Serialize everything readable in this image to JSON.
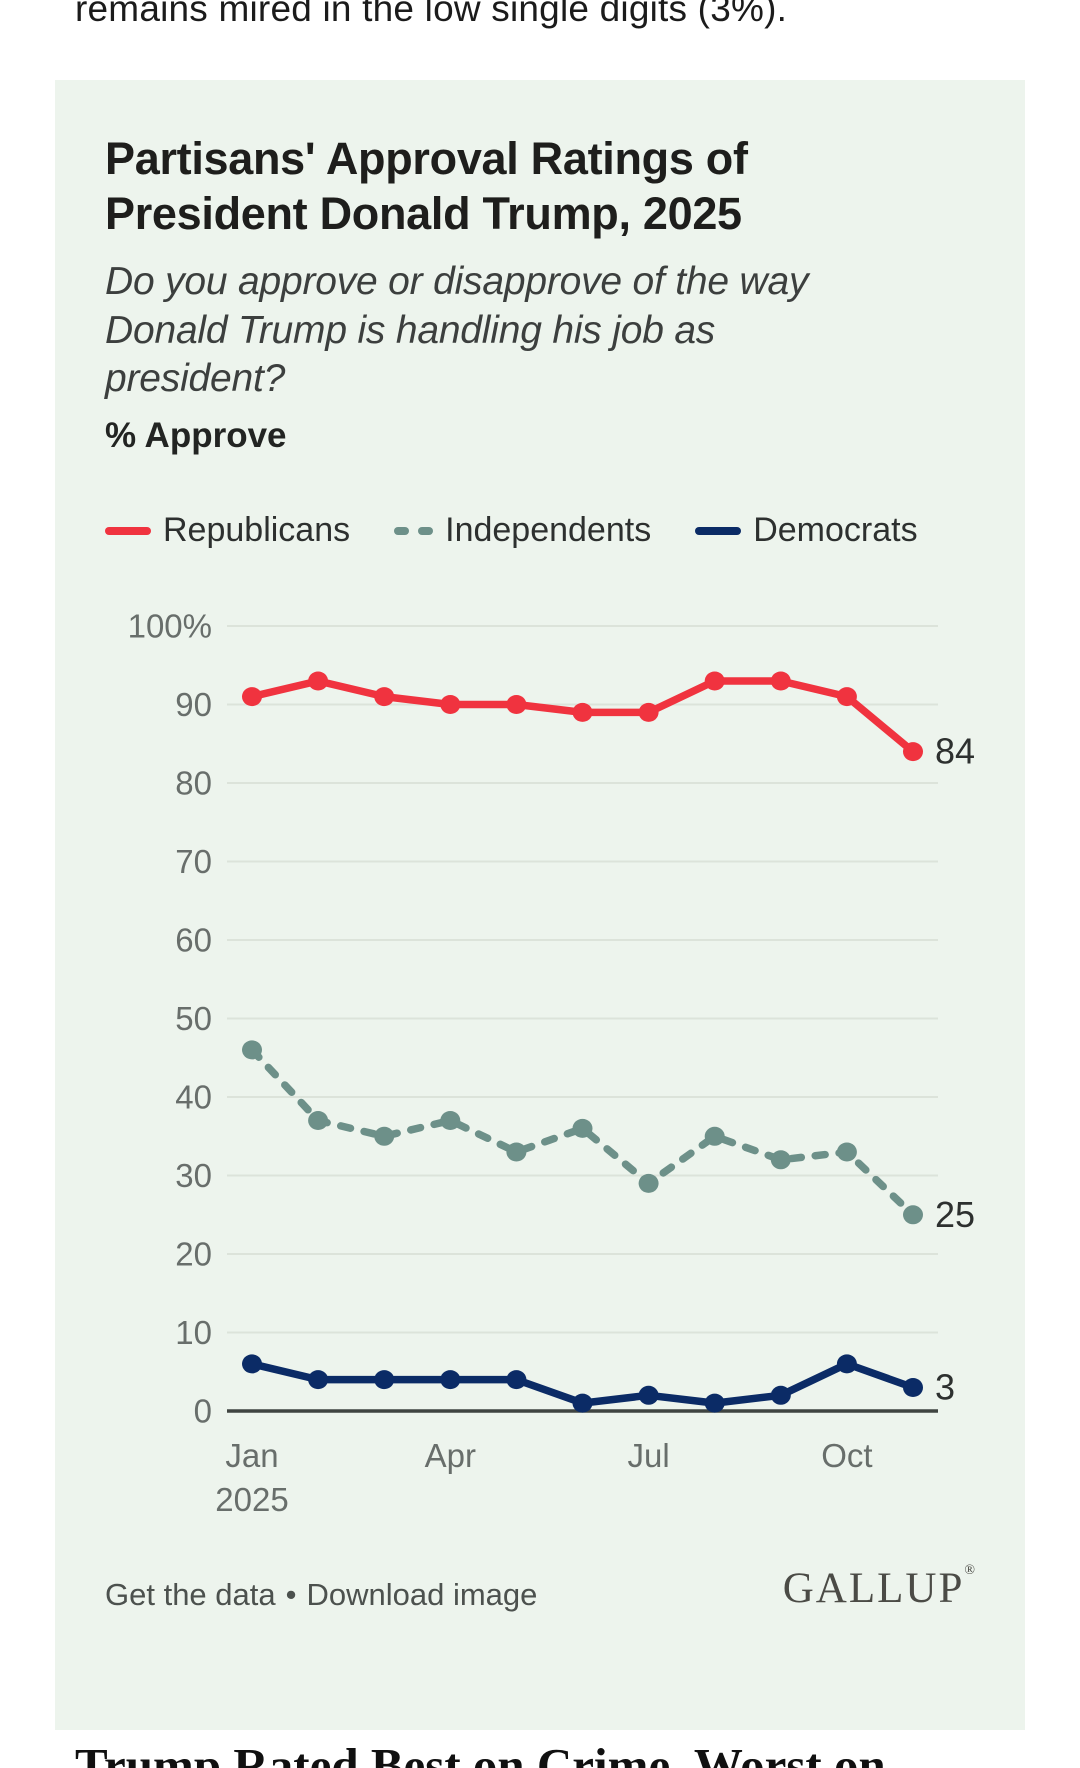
{
  "page": {
    "top_clipped_text": "remains mired in the low single digits (3%).",
    "bottom_clipped_headline": "Trump Rated Best on Crime, Worst on"
  },
  "card": {
    "title": "Partisans' Approval Ratings of President Donald Trump, 2025",
    "subtitle": "Do you approve or disapprove of the way Donald Trump is handling his job as president?",
    "measure_label": "% Approve",
    "footer": {
      "get_data_label": "Get the data",
      "separator": "•",
      "download_label": "Download image",
      "brand": "GALLUP",
      "brand_mark": "®"
    }
  },
  "colors": {
    "card_bg": "#edf4ed",
    "republicans": "#f0333f",
    "independents": "#6d9089",
    "democrats": "#0b2b66",
    "gridline": "#dce3da",
    "zero_axis": "#3f4441",
    "tick_label": "#686e6b",
    "end_label": "#2d302f"
  },
  "chart_data": {
    "type": "line",
    "title": "Partisans' Approval Ratings of President Donald Trump, 2025",
    "subtitle": "Do you approve or disapprove of the way Donald Trump is handling his job as president? % Approve",
    "x": [
      "Jan",
      "Feb",
      "Mar",
      "Apr",
      "May",
      "Jun",
      "Jul",
      "Aug",
      "Sep",
      "Oct",
      "Nov"
    ],
    "x_axis_shown_labels": [
      {
        "index": 0,
        "label": "Jan",
        "sublabel": "2025"
      },
      {
        "index": 3,
        "label": "Apr"
      },
      {
        "index": 6,
        "label": "Jul"
      },
      {
        "index": 9,
        "label": "Oct"
      }
    ],
    "ylim": [
      0,
      100
    ],
    "y_tick_interval": 10,
    "y_top_tick_label": "100%",
    "grid": true,
    "legend_position": "top",
    "series": [
      {
        "name": "Republicans",
        "style": "solid",
        "color": "#f0333f",
        "values": [
          91,
          93,
          91,
          90,
          90,
          89,
          89,
          93,
          93,
          91,
          84
        ],
        "end_label": "84"
      },
      {
        "name": "Independents",
        "style": "dashed",
        "color": "#6d9089",
        "values": [
          46,
          37,
          35,
          37,
          33,
          36,
          29,
          35,
          32,
          33,
          25
        ],
        "end_label": "25"
      },
      {
        "name": "Democrats",
        "style": "solid",
        "color": "#0b2b66",
        "values": [
          6,
          4,
          4,
          4,
          4,
          1,
          2,
          1,
          2,
          6,
          3
        ],
        "end_label": "3"
      }
    ]
  }
}
